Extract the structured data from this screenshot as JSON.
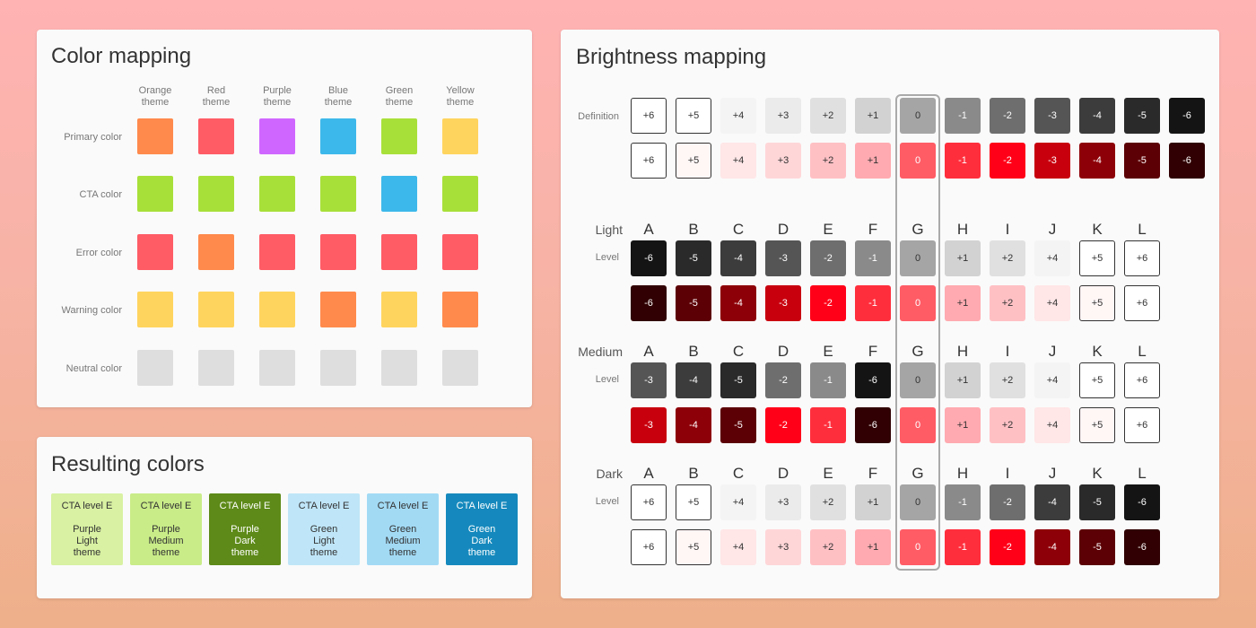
{
  "color_mapping": {
    "title": "Color mapping",
    "themes": [
      {
        "line1": "Orange",
        "line2": "theme"
      },
      {
        "line1": "Red",
        "line2": "theme"
      },
      {
        "line1": "Purple",
        "line2": "theme"
      },
      {
        "line1": "Blue",
        "line2": "theme"
      },
      {
        "line1": "Green",
        "line2": "theme"
      },
      {
        "line1": "Yellow",
        "line2": "theme"
      }
    ],
    "rows": [
      {
        "label": "Primary color",
        "colors": [
          "#ff8a4c",
          "#ff5c66",
          "#cf66ff",
          "#3db8ea",
          "#a8e03a",
          "#ffd45e"
        ]
      },
      {
        "label": "CTA color",
        "colors": [
          "#a8e03a",
          "#a8e03a",
          "#a8e03a",
          "#a8e03a",
          "#3db8ea",
          "#a8e03a"
        ]
      },
      {
        "label": "Error color",
        "colors": [
          "#ff5c66",
          "#ff8a4c",
          "#ff5c66",
          "#ff5c66",
          "#ff5c66",
          "#ff5c66"
        ]
      },
      {
        "label": "Warning color",
        "colors": [
          "#ffd45e",
          "#ffd45e",
          "#ffd45e",
          "#ff8a4c",
          "#ffd45e",
          "#ff8a4c"
        ]
      },
      {
        "label": "Neutral color",
        "colors": [
          "#dedede",
          "#dedede",
          "#dedede",
          "#dedede",
          "#dedede",
          "#dedede"
        ]
      }
    ]
  },
  "resulting_colors": {
    "title": "Resulting colors",
    "cards": [
      {
        "title": "CTA level E",
        "name": "Purple\nLight\ntheme",
        "bg": "#d8f1a2",
        "fg": "#333333"
      },
      {
        "title": "CTA level E",
        "name": "Purple\nMedium\ntheme",
        "bg": "#c9ec88",
        "fg": "#333333"
      },
      {
        "title": "CTA level E",
        "name": "Purple\nDark\ntheme",
        "bg": "#5d8a18",
        "fg": "#ffffff"
      },
      {
        "title": "CTA level E",
        "name": "Green\nLight\ntheme",
        "bg": "#bfe6f8",
        "fg": "#333333"
      },
      {
        "title": "CTA level E",
        "name": "Green\nMedium\ntheme",
        "bg": "#a2daf4",
        "fg": "#333333"
      },
      {
        "title": "CTA level E",
        "name": "Green\nDark\ntheme",
        "bg": "#1589bd",
        "fg": "#ffffff"
      }
    ]
  },
  "brightness_mapping": {
    "title": "Brightness mapping",
    "definition_label": "Definition",
    "letters": [
      "A",
      "B",
      "C",
      "D",
      "E",
      "F",
      "G",
      "H",
      "I",
      "J",
      "K",
      "L"
    ],
    "level_label": "Level",
    "definition": {
      "gray": [
        {
          "v": "+6",
          "bg": "#ffffff",
          "fg": "#333333",
          "o": true
        },
        {
          "v": "+5",
          "bg": "#ffffff",
          "fg": "#333333",
          "o": true
        },
        {
          "v": "+4",
          "bg": "#f4f4f4",
          "fg": "#333333",
          "o": false
        },
        {
          "v": "+3",
          "bg": "#ebebeb",
          "fg": "#333333",
          "o": false
        },
        {
          "v": "+2",
          "bg": "#e0e0e0",
          "fg": "#333333",
          "o": false
        },
        {
          "v": "+1",
          "bg": "#d2d2d2",
          "fg": "#333333",
          "o": false
        },
        {
          "v": "0",
          "bg": "#a5a5a5",
          "fg": "#333333",
          "o": false
        },
        {
          "v": "-1",
          "bg": "#8a8a8a",
          "fg": "#ffffff",
          "o": false
        },
        {
          "v": "-2",
          "bg": "#6e6e6e",
          "fg": "#ffffff",
          "o": false
        },
        {
          "v": "-3",
          "bg": "#555555",
          "fg": "#ffffff",
          "o": false
        },
        {
          "v": "-4",
          "bg": "#3c3c3c",
          "fg": "#ffffff",
          "o": false
        },
        {
          "v": "-5",
          "bg": "#2a2a2a",
          "fg": "#ffffff",
          "o": false
        },
        {
          "v": "-6",
          "bg": "#141414",
          "fg": "#ffffff",
          "o": false
        }
      ],
      "red": [
        {
          "v": "+6",
          "bg": "#ffffff",
          "fg": "#333333",
          "o": true
        },
        {
          "v": "+5",
          "bg": "#fff6f6",
          "fg": "#333333",
          "o": true
        },
        {
          "v": "+4",
          "bg": "#ffe6e7",
          "fg": "#333333",
          "o": false
        },
        {
          "v": "+3",
          "bg": "#ffd6d8",
          "fg": "#333333",
          "o": false
        },
        {
          "v": "+2",
          "bg": "#ffc0c4",
          "fg": "#333333",
          "o": false
        },
        {
          "v": "+1",
          "bg": "#ffaab0",
          "fg": "#333333",
          "o": false
        },
        {
          "v": "0",
          "bg": "#ff5c66",
          "fg": "#ffffff",
          "o": false
        },
        {
          "v": "-1",
          "bg": "#ff2e3c",
          "fg": "#ffffff",
          "o": false
        },
        {
          "v": "-2",
          "bg": "#ff0018",
          "fg": "#ffffff",
          "o": false
        },
        {
          "v": "-3",
          "bg": "#c8000e",
          "fg": "#ffffff",
          "o": false
        },
        {
          "v": "-4",
          "bg": "#8e0008",
          "fg": "#ffffff",
          "o": false
        },
        {
          "v": "-5",
          "bg": "#5c0005",
          "fg": "#ffffff",
          "o": false
        },
        {
          "v": "-6",
          "bg": "#300002",
          "fg": "#ffffff",
          "o": false
        }
      ]
    },
    "sections": [
      {
        "name": "Light",
        "gray": [
          "-6",
          "-5",
          "-4",
          "-3",
          "-2",
          "-1",
          "0",
          "+1",
          "+2",
          "+4",
          "+5",
          "+6"
        ],
        "red": [
          "-6",
          "-5",
          "-4",
          "-3",
          "-2",
          "-1",
          "0",
          "+1",
          "+2",
          "+4",
          "+5",
          "+6"
        ]
      },
      {
        "name": "Medium",
        "gray": [
          "-3",
          "-4",
          "-5",
          "-2",
          "-1",
          "-6",
          "0",
          "+1",
          "+2",
          "+4",
          "+5",
          "+6"
        ],
        "red": [
          "-3",
          "-4",
          "-5",
          "-2",
          "-1",
          "-6",
          "0",
          "+1",
          "+2",
          "+4",
          "+5",
          "+6"
        ]
      },
      {
        "name": "Dark",
        "gray": [
          "+6",
          "+5",
          "+4",
          "+3",
          "+2",
          "+1",
          "0",
          "-1",
          "-2",
          "-4",
          "-5",
          "-6"
        ],
        "red": [
          "+6",
          "+5",
          "+4",
          "+3",
          "+2",
          "+1",
          "0",
          "-1",
          "-2",
          "-4",
          "-5",
          "-6"
        ]
      }
    ]
  }
}
